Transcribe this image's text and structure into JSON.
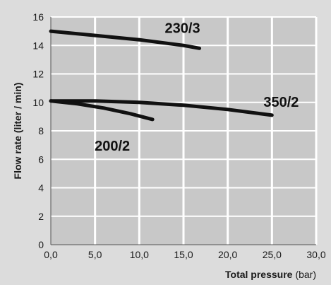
{
  "chart_data": {
    "type": "line",
    "xlabel": "Total pressure",
    "xunit": "(bar)",
    "ylabel": "Flow rate (liter / min)",
    "xlim": [
      0,
      30
    ],
    "ylim": [
      0,
      16
    ],
    "xticks": [
      "0,0",
      "5,0",
      "10,0",
      "15,0",
      "20,0",
      "25,0",
      "30,0"
    ],
    "yticks": [
      "0",
      "2",
      "4",
      "6",
      "8",
      "10",
      "12",
      "14",
      "16"
    ],
    "grid": true,
    "series": [
      {
        "name": "230/3",
        "x": [
          0,
          5,
          10,
          15,
          16.8
        ],
        "y": [
          15.0,
          14.7,
          14.4,
          14.0,
          13.8
        ]
      },
      {
        "name": "350/2",
        "x": [
          0,
          5,
          10,
          15,
          20,
          25
        ],
        "y": [
          10.1,
          10.1,
          10.0,
          9.8,
          9.5,
          9.1
        ]
      },
      {
        "name": "200/2",
        "x": [
          0,
          3,
          6,
          9,
          11.5
        ],
        "y": [
          10.1,
          9.9,
          9.6,
          9.2,
          8.8
        ]
      }
    ],
    "colors": {
      "background": "#dcdcdc",
      "plot": "#c8c8c8",
      "grid": "#ffffff",
      "line": "#111111"
    }
  }
}
